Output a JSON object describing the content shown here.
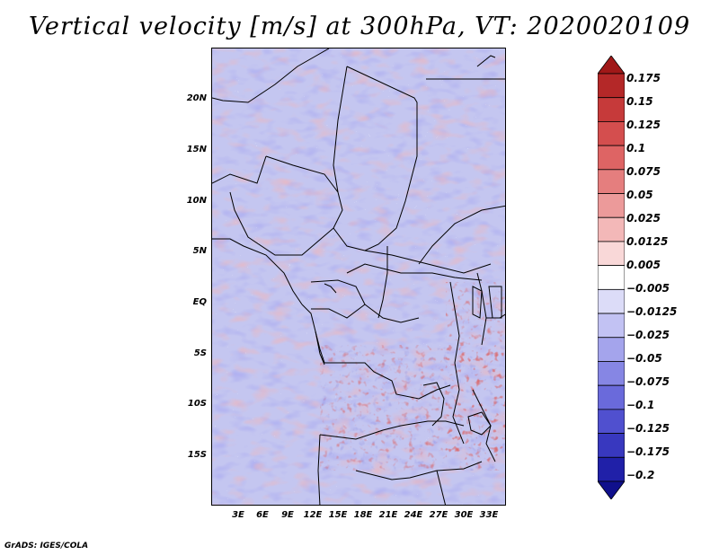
{
  "title": "Vertical velocity [m/s] at 300hPa, VT: 2020020109",
  "footer": "GrADS: IGES/COLA",
  "map": {
    "variable": "Vertical velocity",
    "units": "m/s",
    "level": "300hPa",
    "valid_time": "2020020109",
    "lat_labels": [
      "20N",
      "15N",
      "10N",
      "5N",
      "EQ",
      "5S",
      "10S",
      "15S"
    ],
    "lon_labels": [
      "3E",
      "6E",
      "9E",
      "12E",
      "15E",
      "18E",
      "21E",
      "24E",
      "27E",
      "30E",
      "33E"
    ]
  },
  "colorbar": {
    "labels": [
      "0.175",
      "0.15",
      "0.125",
      "0.1",
      "0.075",
      "0.05",
      "0.025",
      "0.0125",
      "0.005",
      "−0.005",
      "−0.0125",
      "−0.025",
      "−0.05",
      "−0.075",
      "−0.1",
      "−0.125",
      "−0.175",
      "−0.2"
    ],
    "colors": [
      "#a01818",
      "#b42828",
      "#c63a3a",
      "#d44e4e",
      "#de6464",
      "#e57e7e",
      "#ec9a9a",
      "#f3b8b8",
      "#f9d8d8",
      "#ffffff",
      "#dcdcf8",
      "#c2c2f3",
      "#a4a4ec",
      "#8686e4",
      "#6a6adb",
      "#5050cf",
      "#3838bf",
      "#2020a8",
      "#10108c"
    ]
  }
}
